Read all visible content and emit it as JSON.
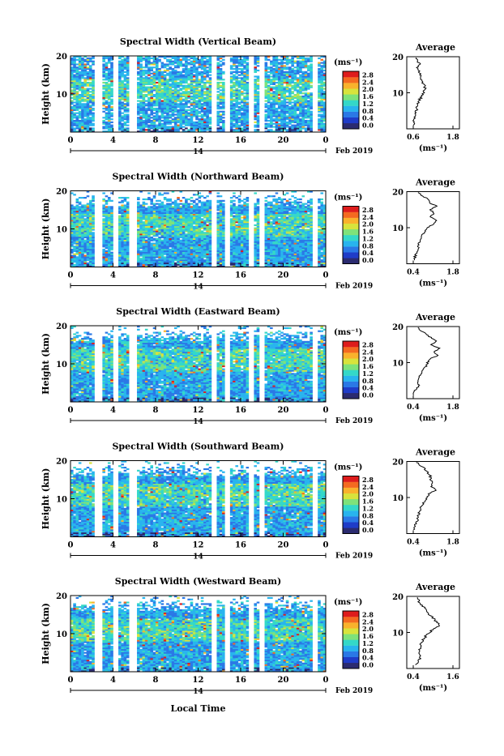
{
  "chart_data": {
    "type": "heatmap",
    "date_label": "Feb 2019",
    "day_label": "14",
    "x_label": "Local Time",
    "y_label": "Height (km)",
    "x_ticks": [
      "0",
      "4",
      "8",
      "12",
      "16",
      "20",
      "0"
    ],
    "y_ticks": [
      "10",
      "20"
    ],
    "colorbar": {
      "unit": "(ms⁻¹)",
      "ticks": [
        "0.0",
        "0.4",
        "0.8",
        "1.2",
        "1.6",
        "2.0",
        "2.4",
        "2.8"
      ],
      "colors": [
        "#2b2b70",
        "#1f3cc8",
        "#2a78e6",
        "#28b4ee",
        "#34d8c8",
        "#7ee27a",
        "#d8e33c",
        "#f9b22c",
        "#f46a20",
        "#de1c1c"
      ]
    },
    "average_title": "Average",
    "average_unit": "(ms⁻¹)",
    "panels": [
      {
        "title": "Spectral Width (Vertical Beam)",
        "avg_xticks": [
          "0.6",
          "1.8"
        ],
        "avg_xlim": [
          0.6,
          1.8
        ],
        "average_profile": [
          [
            0.62,
            1
          ],
          [
            0.62,
            2
          ],
          [
            0.63,
            3
          ],
          [
            0.66,
            4
          ],
          [
            0.7,
            5
          ],
          [
            0.72,
            6
          ],
          [
            0.74,
            7
          ],
          [
            0.78,
            8
          ],
          [
            0.86,
            9
          ],
          [
            0.9,
            10
          ],
          [
            0.96,
            11
          ],
          [
            0.94,
            12
          ],
          [
            0.86,
            13
          ],
          [
            0.84,
            14
          ],
          [
            0.82,
            15
          ],
          [
            0.76,
            16
          ],
          [
            0.72,
            17
          ],
          [
            0.78,
            18
          ],
          [
            0.7,
            19
          ],
          [
            0.68,
            20
          ]
        ]
      },
      {
        "title": "Spectral Width (Northward Beam)",
        "avg_xticks": [
          "0.4",
          "1.8"
        ],
        "avg_xlim": [
          0.4,
          1.8
        ],
        "average_profile": [
          [
            0.45,
            1
          ],
          [
            0.46,
            2
          ],
          [
            0.52,
            3
          ],
          [
            0.6,
            4
          ],
          [
            0.58,
            5
          ],
          [
            0.62,
            6
          ],
          [
            0.68,
            7
          ],
          [
            0.72,
            8
          ],
          [
            0.8,
            9
          ],
          [
            0.9,
            10
          ],
          [
            1.1,
            11
          ],
          [
            1.2,
            12
          ],
          [
            1.0,
            13
          ],
          [
            1.15,
            14
          ],
          [
            1.0,
            15
          ],
          [
            1.25,
            16
          ],
          [
            0.95,
            17
          ],
          [
            0.9,
            18
          ],
          [
            0.7,
            19
          ],
          [
            0.55,
            20
          ]
        ]
      },
      {
        "title": "Spectral Width (Eastward Beam)",
        "avg_xticks": [
          "0.4",
          "1.8"
        ],
        "avg_xlim": [
          0.4,
          1.8
        ],
        "average_profile": [
          [
            0.42,
            1
          ],
          [
            0.45,
            2
          ],
          [
            0.55,
            3
          ],
          [
            0.6,
            4
          ],
          [
            0.58,
            5
          ],
          [
            0.6,
            6
          ],
          [
            0.66,
            7
          ],
          [
            0.75,
            8
          ],
          [
            0.85,
            9
          ],
          [
            0.9,
            10
          ],
          [
            1.0,
            11
          ],
          [
            1.25,
            12
          ],
          [
            1.15,
            13
          ],
          [
            1.3,
            14
          ],
          [
            1.05,
            15
          ],
          [
            1.2,
            16
          ],
          [
            1.0,
            17
          ],
          [
            0.85,
            18
          ],
          [
            0.65,
            19
          ],
          [
            0.55,
            20
          ]
        ]
      },
      {
        "title": "Spectral Width (Southward Beam)",
        "avg_xticks": [
          "0.4",
          "1.8"
        ],
        "avg_xlim": [
          0.4,
          1.8
        ],
        "average_profile": [
          [
            0.44,
            1
          ],
          [
            0.46,
            2
          ],
          [
            0.5,
            3
          ],
          [
            0.56,
            4
          ],
          [
            0.58,
            5
          ],
          [
            0.62,
            6
          ],
          [
            0.66,
            7
          ],
          [
            0.72,
            8
          ],
          [
            0.82,
            9
          ],
          [
            0.88,
            10
          ],
          [
            0.95,
            11
          ],
          [
            1.2,
            12
          ],
          [
            1.05,
            13
          ],
          [
            1.1,
            14
          ],
          [
            1.0,
            15
          ],
          [
            1.0,
            16
          ],
          [
            0.9,
            17
          ],
          [
            0.8,
            18
          ],
          [
            0.62,
            19
          ],
          [
            0.5,
            20
          ]
        ]
      },
      {
        "title": "Spectral Width (Westward Beam)",
        "avg_xticks": [
          "0.4",
          "1.6"
        ],
        "avg_xlim": [
          0.4,
          1.6
        ],
        "average_profile": [
          [
            0.5,
            1
          ],
          [
            0.55,
            2
          ],
          [
            0.62,
            3
          ],
          [
            0.6,
            4
          ],
          [
            0.58,
            5
          ],
          [
            0.6,
            6
          ],
          [
            0.64,
            7
          ],
          [
            0.7,
            8
          ],
          [
            0.78,
            9
          ],
          [
            0.9,
            10
          ],
          [
            1.0,
            11
          ],
          [
            1.2,
            12
          ],
          [
            1.1,
            13
          ],
          [
            1.0,
            14
          ],
          [
            0.88,
            15
          ],
          [
            0.8,
            16
          ],
          [
            0.72,
            17
          ],
          [
            0.6,
            18
          ],
          [
            0.55,
            19
          ],
          [
            0.5,
            20
          ]
        ]
      }
    ]
  }
}
